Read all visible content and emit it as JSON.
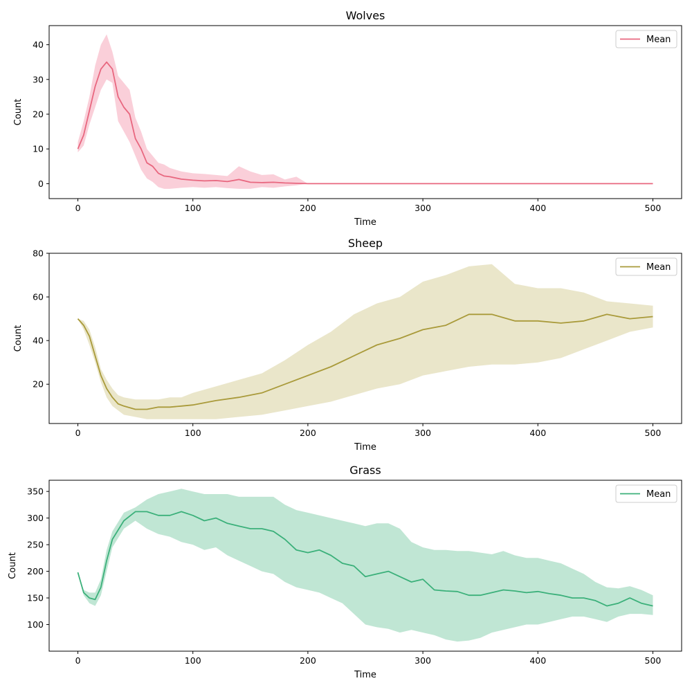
{
  "chart_data": [
    {
      "type": "area",
      "title": "Wolves",
      "xlabel": "Time",
      "ylabel": "Count",
      "xlim": [
        -25,
        525
      ],
      "ylim": [
        -4.3,
        45.5
      ],
      "xticks": [
        0,
        100,
        200,
        300,
        400,
        500
      ],
      "yticks": [
        0,
        10,
        20,
        30,
        40
      ],
      "legend": "top-right",
      "grid": false,
      "color": "#e8677f",
      "band_color": "#f7b6c4",
      "series": [
        {
          "name": "Mean",
          "x": [
            0,
            5,
            10,
            15,
            20,
            25,
            30,
            35,
            40,
            45,
            50,
            55,
            60,
            65,
            70,
            75,
            80,
            90,
            100,
            110,
            120,
            130,
            140,
            150,
            160,
            170,
            180,
            190,
            200,
            500
          ],
          "mean": [
            10,
            14,
            21,
            28,
            33,
            35,
            33,
            25,
            22,
            20,
            13,
            10,
            6,
            5,
            3,
            2.2,
            2,
            1.3,
            1,
            0.8,
            0.9,
            0.6,
            1.2,
            0.4,
            0.3,
            0.4,
            0.2,
            0.1,
            0,
            0
          ],
          "lower": [
            9,
            11,
            17,
            22,
            27,
            30,
            29,
            18,
            15,
            12,
            8,
            4,
            1.5,
            0.5,
            -1,
            -1.5,
            -1.5,
            -1.2,
            -1,
            -1.2,
            -1,
            -1.3,
            -1.5,
            -1.5,
            -1,
            -1.2,
            -0.8,
            -0.5,
            0,
            0
          ],
          "upper": [
            12,
            18,
            25,
            34,
            40,
            43,
            38,
            31,
            29,
            27,
            19,
            15,
            10,
            8,
            6,
            5.5,
            4.5,
            3.5,
            3,
            2.8,
            2.5,
            2.2,
            5,
            3.5,
            2.5,
            2.7,
            1.2,
            2,
            0,
            0
          ]
        }
      ]
    },
    {
      "type": "area",
      "title": "Sheep",
      "xlabel": "Time",
      "ylabel": "Count",
      "xlim": [
        -25,
        525
      ],
      "ylim": [
        2,
        80
      ],
      "xticks": [
        0,
        100,
        200,
        300,
        400,
        500
      ],
      "yticks": [
        20,
        40,
        60,
        80
      ],
      "legend": "top-right",
      "grid": false,
      "color": "#a99a3a",
      "band_color": "#ded8ae",
      "series": [
        {
          "name": "Mean",
          "x": [
            0,
            5,
            10,
            15,
            20,
            25,
            30,
            35,
            40,
            50,
            60,
            70,
            80,
            90,
            100,
            120,
            140,
            160,
            180,
            200,
            220,
            240,
            260,
            280,
            300,
            320,
            340,
            360,
            380,
            400,
            420,
            440,
            460,
            480,
            500
          ],
          "mean": [
            50,
            47,
            42,
            33,
            24,
            18,
            14,
            11,
            10,
            8.5,
            8.5,
            9.5,
            9.5,
            10,
            10.5,
            12.5,
            14,
            16,
            20,
            24,
            28,
            33,
            38,
            41,
            45,
            47,
            52,
            52,
            49,
            49,
            48,
            49,
            52,
            50,
            51
          ],
          "lower": [
            50,
            45,
            38,
            30,
            21,
            14,
            10,
            8,
            6,
            5,
            4,
            4,
            4,
            4,
            4,
            4,
            5,
            6,
            8,
            10,
            12,
            15,
            18,
            20,
            24,
            26,
            28,
            29,
            29,
            30,
            32,
            36,
            40,
            44,
            46
          ],
          "upper": [
            50,
            49,
            45,
            37,
            27,
            22,
            18,
            15,
            14,
            13,
            13,
            13,
            14,
            14,
            16,
            19,
            22,
            25,
            31,
            38,
            44,
            52,
            57,
            60,
            67,
            70,
            74,
            75,
            66,
            64,
            64,
            62,
            58,
            57,
            56
          ]
        }
      ]
    },
    {
      "type": "area",
      "title": "Grass",
      "xlabel": "Time",
      "ylabel": "Count",
      "xlim": [
        -25,
        525
      ],
      "ylim": [
        50,
        371
      ],
      "xticks": [
        0,
        100,
        200,
        300,
        400,
        500
      ],
      "yticks": [
        100,
        150,
        200,
        250,
        300,
        350
      ],
      "legend": "top-right",
      "grid": false,
      "color": "#3bb07a",
      "band_color": "#9ed8bd",
      "series": [
        {
          "name": "Mean",
          "x": [
            0,
            5,
            10,
            15,
            20,
            25,
            30,
            40,
            50,
            60,
            70,
            80,
            90,
            100,
            110,
            120,
            130,
            140,
            150,
            160,
            170,
            180,
            190,
            200,
            210,
            220,
            230,
            240,
            250,
            260,
            270,
            280,
            290,
            300,
            310,
            320,
            330,
            340,
            350,
            360,
            370,
            380,
            390,
            400,
            410,
            420,
            430,
            440,
            450,
            460,
            470,
            480,
            490,
            500
          ],
          "mean": [
            198,
            160,
            150,
            147,
            170,
            220,
            260,
            295,
            312,
            312,
            305,
            305,
            312,
            305,
            295,
            300,
            290,
            285,
            280,
            280,
            275,
            260,
            240,
            235,
            240,
            230,
            215,
            210,
            190,
            195,
            200,
            190,
            180,
            185,
            165,
            163,
            162,
            155,
            155,
            160,
            165,
            163,
            160,
            162,
            158,
            155,
            150,
            150,
            145,
            135,
            140,
            150,
            140,
            135
          ],
          "lower": [
            198,
            155,
            140,
            135,
            155,
            200,
            245,
            280,
            295,
            280,
            270,
            265,
            255,
            250,
            240,
            245,
            230,
            220,
            210,
            200,
            195,
            180,
            170,
            165,
            160,
            150,
            140,
            120,
            100,
            95,
            92,
            85,
            90,
            85,
            80,
            72,
            68,
            70,
            75,
            85,
            90,
            95,
            100,
            100,
            105,
            110,
            115,
            115,
            110,
            105,
            115,
            120,
            120,
            118
          ],
          "upper": [
            198,
            165,
            160,
            160,
            185,
            240,
            275,
            310,
            320,
            335,
            345,
            350,
            355,
            350,
            345,
            345,
            345,
            340,
            340,
            340,
            340,
            325,
            315,
            310,
            305,
            300,
            295,
            290,
            285,
            290,
            290,
            280,
            255,
            245,
            240,
            240,
            238,
            238,
            235,
            232,
            238,
            230,
            225,
            225,
            220,
            215,
            205,
            195,
            180,
            170,
            168,
            172,
            165,
            155
          ]
        }
      ]
    }
  ]
}
